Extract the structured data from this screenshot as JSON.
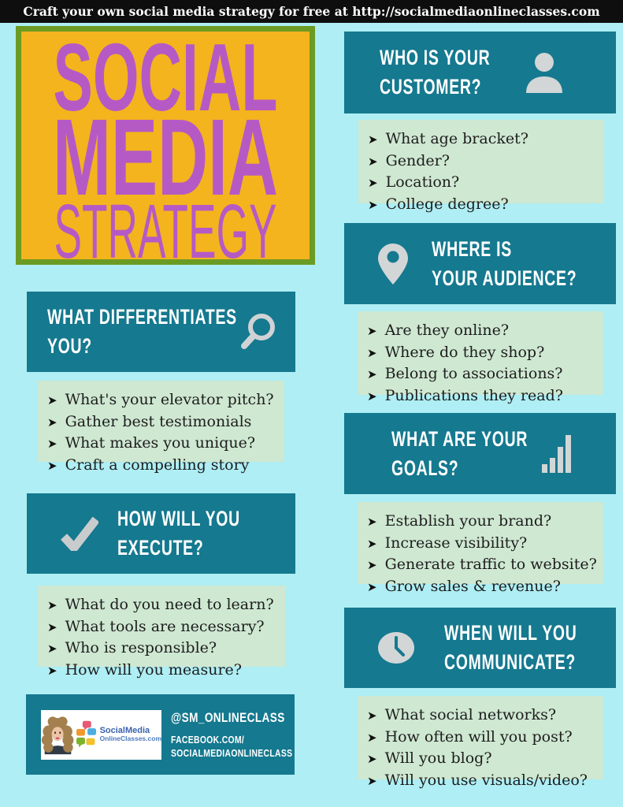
{
  "banner": {
    "text": "Craft your own social media strategy for free at http://socialmediaonlineclasses.com"
  },
  "title": {
    "lines": [
      "SOCIAL",
      "MEDIA",
      "STRATEGY"
    ]
  },
  "bullet_glyph": "➤",
  "colors": {
    "background": "#aeeef4",
    "banner_bg": "#0e0e0e",
    "panel_teal": "#15798f",
    "list_green": "#cfe8d2",
    "title_yellow": "#f4b41d",
    "title_border_green": "#6b9b23",
    "title_purple": "#b55ac5",
    "icon_gray": "#d2d6d7"
  },
  "sections": [
    {
      "id": "customer",
      "heading_lines": [
        "WHO IS YOUR",
        "CUSTOMER?"
      ],
      "icon": "person",
      "items": [
        "What age bracket?",
        "Gender?",
        "Location?",
        "College degree?"
      ]
    },
    {
      "id": "audience",
      "heading_lines": [
        "WHERE IS",
        "YOUR AUDIENCE?"
      ],
      "icon": "location-pin",
      "items": [
        "Are they online?",
        "Where do they shop?",
        "Belong to associations?",
        "Publications they read?"
      ]
    },
    {
      "id": "goals",
      "heading_lines": [
        "WHAT ARE YOUR",
        "GOALS?"
      ],
      "icon": "bar-chart",
      "items": [
        "Establish your brand?",
        "Increase visibility?",
        "Generate traffic to website?",
        "Grow sales & revenue?"
      ]
    },
    {
      "id": "communicate",
      "heading_lines": [
        "WHEN WILL YOU",
        "COMMUNICATE?"
      ],
      "icon": "clock",
      "items": [
        "What social networks?",
        "How often will you post?",
        "Will you blog?",
        "Will you use visuals/video?"
      ]
    },
    {
      "id": "differentiates",
      "heading_lines": [
        "WHAT DIFFERENTIATES",
        "YOU?"
      ],
      "icon": "magnifier",
      "items": [
        "What's your elevator pitch?",
        "Gather best testimonials",
        "What makes you unique?",
        "Craft a compelling story"
      ]
    },
    {
      "id": "execute",
      "heading_lines": [
        "HOW WILL YOU",
        "EXECUTE?"
      ],
      "icon": "checkmark",
      "items": [
        "What do you need to learn?",
        "What tools are necessary?",
        "Who is responsible?",
        "How will you measure?"
      ]
    }
  ],
  "footer": {
    "handle": "@SM_ONLINECLASS",
    "facebook_line1": "FACEBOOK.COM/",
    "facebook_line2": "SOCIALMEDIAONLINECLASS",
    "logo_line1": "SocialMedia",
    "logo_line2": "OnlineClasses.com"
  }
}
